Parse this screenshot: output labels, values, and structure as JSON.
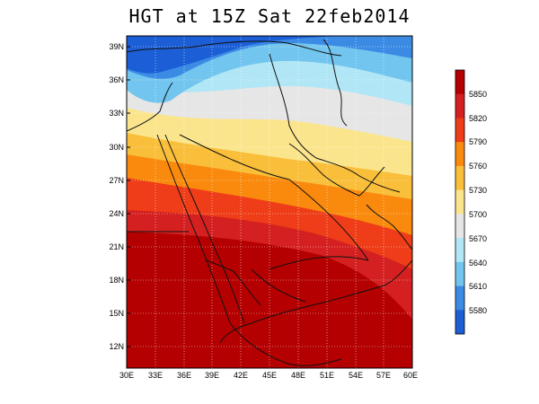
{
  "title": "HGT at 15Z Sat 22feb2014",
  "map": {
    "lat_labels": [
      "39N",
      "36N",
      "33N",
      "30N",
      "27N",
      "24N",
      "21N",
      "18N",
      "15N",
      "12N"
    ],
    "lon_labels": [
      "30E",
      "33E",
      "36E",
      "39E",
      "42E",
      "45E",
      "48E",
      "51E",
      "54E",
      "57E",
      "60E"
    ],
    "extent": {
      "lon_min": 30,
      "lon_max": 60,
      "lat_min": 9.8,
      "lat_max": 40.8
    },
    "grid": true,
    "field": "geopotential height 500 hPa contour bands"
  },
  "colorbar": {
    "levels": [
      "5850",
      "5820",
      "5790",
      "5760",
      "5730",
      "5700",
      "5670",
      "5640",
      "5610",
      "5580"
    ],
    "colors": [
      "#b40000",
      "#d42020",
      "#ee3d18",
      "#f98a0d",
      "#f9be3a",
      "#fbe58c",
      "#e6e6e6",
      "#b0e6f5",
      "#72c5ee",
      "#3b8be5",
      "#1c5ed6"
    ]
  }
}
